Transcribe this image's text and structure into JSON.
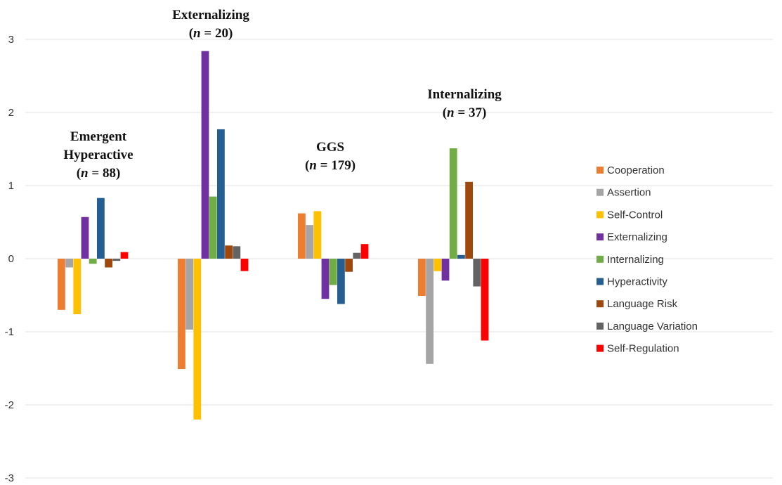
{
  "chart_data": {
    "type": "bar",
    "categories": [
      "Emergent Hyperactive",
      "Externalizing",
      "GGS",
      "Internalizing"
    ],
    "group_labels": [
      {
        "lines": [
          "Emergent",
          "Hyperactive"
        ],
        "n_prefix": "n",
        "n_suffix": " = 88)"
      },
      {
        "lines": [
          "Externalizing"
        ],
        "n_prefix": "n",
        "n_suffix": " = 20)"
      },
      {
        "lines": [
          "GGS"
        ],
        "n_prefix": "n",
        "n_suffix": " = 179)"
      },
      {
        "lines": [
          "Internalizing"
        ],
        "n_prefix": "n",
        "n_suffix": " = 37)"
      }
    ],
    "series": [
      {
        "name": "Cooperation",
        "color": "#ED7D31",
        "values": [
          -0.7,
          -1.51,
          0.62,
          -0.51
        ]
      },
      {
        "name": "Assertion",
        "color": "#A5A5A5",
        "values": [
          -0.12,
          -0.97,
          0.46,
          -1.44
        ]
      },
      {
        "name": "Self-Control",
        "color": "#FFC000",
        "values": [
          -0.76,
          -2.2,
          0.65,
          -0.17
        ]
      },
      {
        "name": "Externalizing",
        "color": "#7030A0",
        "values": [
          0.57,
          2.84,
          -0.55,
          -0.3
        ]
      },
      {
        "name": "Internalizing",
        "color": "#70AD47",
        "values": [
          -0.07,
          0.85,
          -0.36,
          1.51
        ]
      },
      {
        "name": "Hyperactivity",
        "color": "#255E91",
        "values": [
          0.83,
          1.77,
          -0.62,
          0.05
        ]
      },
      {
        "name": "Language Risk",
        "color": "#9E480E",
        "values": [
          -0.12,
          0.18,
          -0.18,
          1.05
        ]
      },
      {
        "name": "Language Variation",
        "color": "#636363",
        "values": [
          -0.03,
          0.17,
          0.08,
          -0.38
        ]
      },
      {
        "name": "Self-Regulation",
        "color": "#FF0000",
        "values": [
          0.09,
          -0.17,
          0.2,
          -1.12
        ]
      }
    ],
    "ylim": [
      -3,
      3
    ],
    "yticks": [
      3,
      2,
      1,
      0,
      -1,
      -2,
      -3
    ],
    "grid": true,
    "legend": "right",
    "title": "",
    "xlabel": "",
    "ylabel": ""
  }
}
